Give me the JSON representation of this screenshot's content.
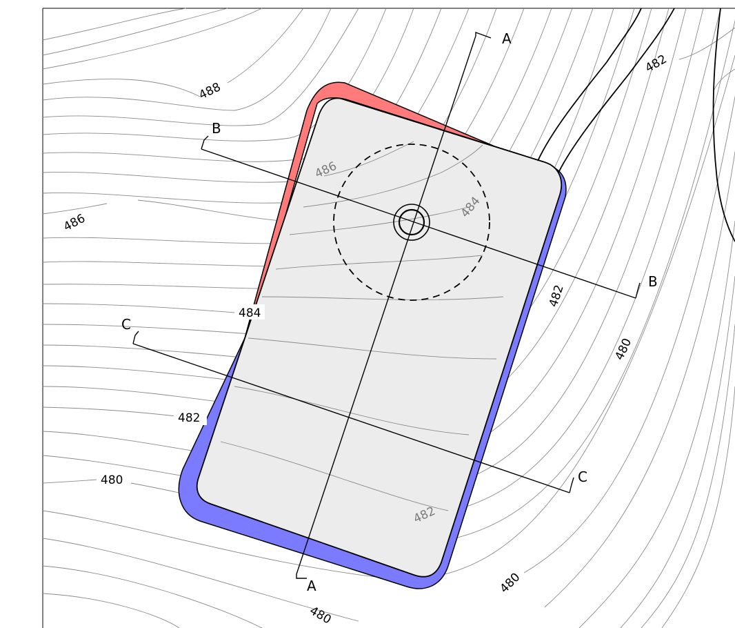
{
  "colors": {
    "cut": "#ff7a7a",
    "fill": "#7b7bff",
    "pad": "#ececec",
    "contour": "#8a8a8a"
  },
  "contour_labels": {
    "c488": "488",
    "c486_left": "486",
    "c486_pad": "486",
    "c484_pad": "484",
    "c484_edge": "484",
    "c482_top": "482",
    "c482_right": "482",
    "c482_left": "482",
    "c482_pad": "482",
    "c480_right": "480",
    "c480_left": "480",
    "c480_bottom": "480",
    "c480_bottom2": "480"
  },
  "sections": {
    "a_top": "A",
    "a_bottom": "A",
    "b_left": "B",
    "b_right": "B",
    "c_left": "C",
    "c_right": "C"
  }
}
